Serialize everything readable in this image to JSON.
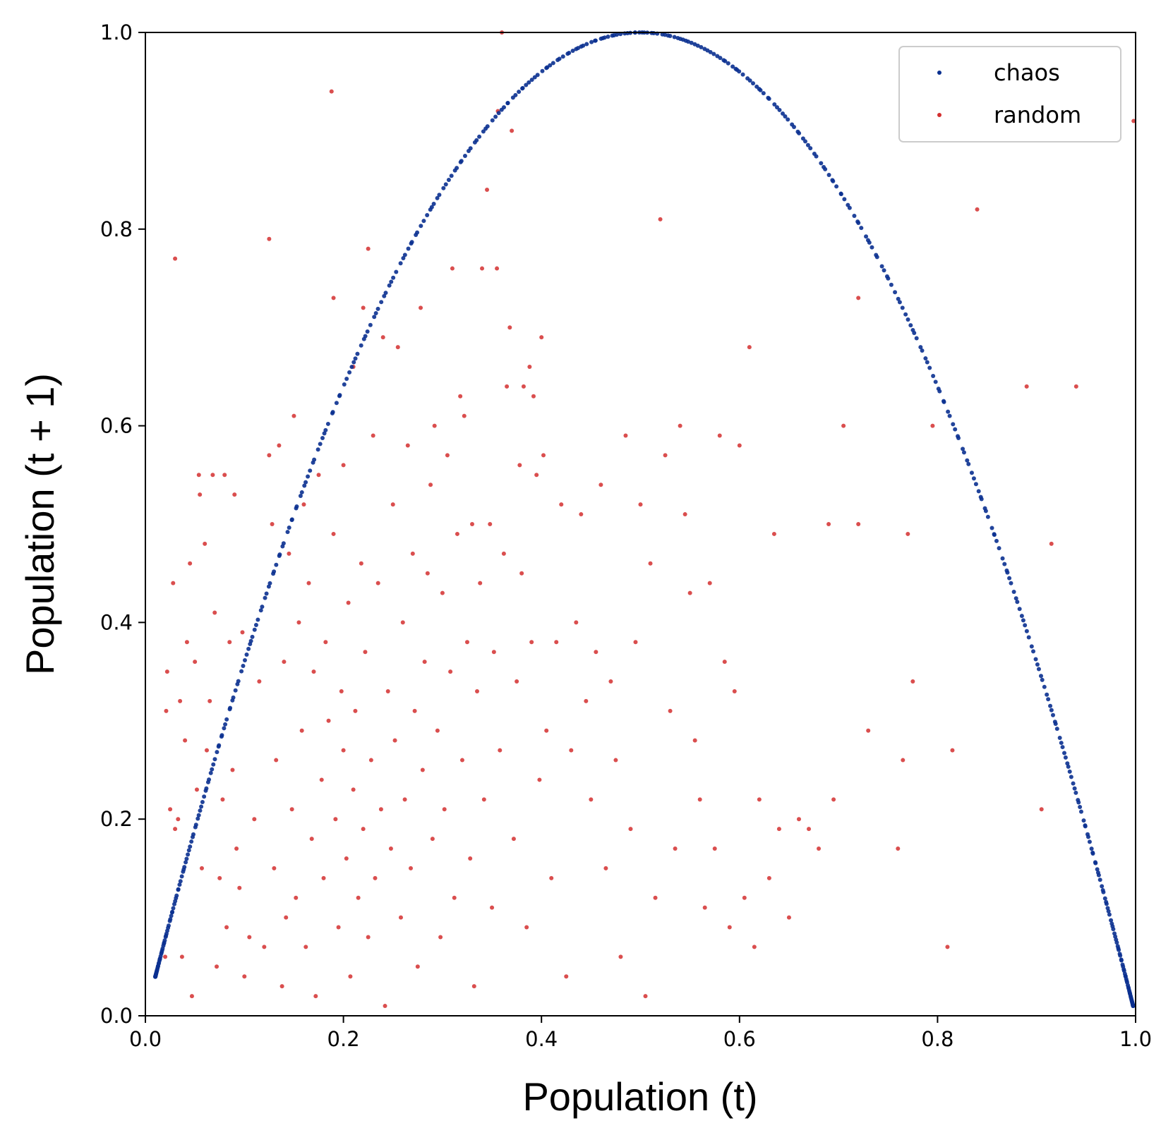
{
  "chart_data": {
    "type": "scatter",
    "xlabel": "Population (t)",
    "ylabel": "Population (t + 1)",
    "xlim": [
      0,
      1
    ],
    "ylim": [
      0,
      1
    ],
    "xticks": [
      "0.0",
      "0.2",
      "0.4",
      "0.6",
      "0.8",
      "1.0"
    ],
    "yticks": [
      "0.0",
      "0.2",
      "0.4",
      "0.6",
      "0.8",
      "1.0"
    ],
    "legend_position": "top-right",
    "series": [
      {
        "name": "chaos",
        "color": "#0a3090",
        "relation": "y = 4x(1 - x)",
        "x_range": [
          0.01,
          0.9975
        ],
        "point_count": 500
      },
      {
        "name": "random",
        "color": "#d32f2f",
        "points": [
          [
            0.02,
            0.06
          ],
          [
            0.021,
            0.31
          ],
          [
            0.022,
            0.35
          ],
          [
            0.025,
            0.21
          ],
          [
            0.028,
            0.44
          ],
          [
            0.03,
            0.77
          ],
          [
            0.03,
            0.19
          ],
          [
            0.033,
            0.2
          ],
          [
            0.035,
            0.32
          ],
          [
            0.037,
            0.06
          ],
          [
            0.04,
            0.28
          ],
          [
            0.042,
            0.38
          ],
          [
            0.045,
            0.46
          ],
          [
            0.047,
            0.02
          ],
          [
            0.05,
            0.36
          ],
          [
            0.052,
            0.23
          ],
          [
            0.054,
            0.55
          ],
          [
            0.055,
            0.53
          ],
          [
            0.057,
            0.15
          ],
          [
            0.06,
            0.48
          ],
          [
            0.062,
            0.27
          ],
          [
            0.065,
            0.32
          ],
          [
            0.068,
            0.55
          ],
          [
            0.07,
            0.41
          ],
          [
            0.072,
            0.05
          ],
          [
            0.075,
            0.14
          ],
          [
            0.078,
            0.22
          ],
          [
            0.08,
            0.55
          ],
          [
            0.082,
            0.09
          ],
          [
            0.085,
            0.38
          ],
          [
            0.088,
            0.25
          ],
          [
            0.09,
            0.53
          ],
          [
            0.092,
            0.17
          ],
          [
            0.095,
            0.13
          ],
          [
            0.098,
            0.39
          ],
          [
            0.1,
            0.04
          ],
          [
            0.105,
            0.08
          ],
          [
            0.11,
            0.2
          ],
          [
            0.115,
            0.34
          ],
          [
            0.12,
            0.07
          ],
          [
            0.125,
            0.79
          ],
          [
            0.125,
            0.57
          ],
          [
            0.128,
            0.5
          ],
          [
            0.13,
            0.15
          ],
          [
            0.132,
            0.26
          ],
          [
            0.135,
            0.58
          ],
          [
            0.138,
            0.03
          ],
          [
            0.14,
            0.36
          ],
          [
            0.142,
            0.1
          ],
          [
            0.145,
            0.47
          ],
          [
            0.148,
            0.21
          ],
          [
            0.15,
            0.61
          ],
          [
            0.152,
            0.12
          ],
          [
            0.155,
            0.4
          ],
          [
            0.158,
            0.29
          ],
          [
            0.16,
            0.52
          ],
          [
            0.162,
            0.07
          ],
          [
            0.165,
            0.44
          ],
          [
            0.168,
            0.18
          ],
          [
            0.17,
            0.35
          ],
          [
            0.172,
            0.02
          ],
          [
            0.175,
            0.55
          ],
          [
            0.178,
            0.24
          ],
          [
            0.18,
            0.14
          ],
          [
            0.182,
            0.38
          ],
          [
            0.185,
            0.3
          ],
          [
            0.188,
            0.94
          ],
          [
            0.19,
            0.49
          ],
          [
            0.19,
            0.73
          ],
          [
            0.192,
            0.2
          ],
          [
            0.195,
            0.09
          ],
          [
            0.198,
            0.33
          ],
          [
            0.2,
            0.56
          ],
          [
            0.2,
            0.27
          ],
          [
            0.203,
            0.16
          ],
          [
            0.205,
            0.42
          ],
          [
            0.207,
            0.04
          ],
          [
            0.21,
            0.66
          ],
          [
            0.21,
            0.23
          ],
          [
            0.212,
            0.31
          ],
          [
            0.215,
            0.12
          ],
          [
            0.218,
            0.46
          ],
          [
            0.22,
            0.72
          ],
          [
            0.22,
            0.19
          ],
          [
            0.222,
            0.37
          ],
          [
            0.225,
            0.78
          ],
          [
            0.225,
            0.08
          ],
          [
            0.228,
            0.26
          ],
          [
            0.23,
            0.59
          ],
          [
            0.232,
            0.14
          ],
          [
            0.235,
            0.44
          ],
          [
            0.238,
            0.21
          ],
          [
            0.24,
            0.69
          ],
          [
            0.242,
            0.01
          ],
          [
            0.245,
            0.33
          ],
          [
            0.248,
            0.17
          ],
          [
            0.25,
            0.52
          ],
          [
            0.252,
            0.28
          ],
          [
            0.255,
            0.68
          ],
          [
            0.258,
            0.1
          ],
          [
            0.26,
            0.4
          ],
          [
            0.262,
            0.22
          ],
          [
            0.265,
            0.58
          ],
          [
            0.268,
            0.15
          ],
          [
            0.27,
            0.47
          ],
          [
            0.272,
            0.31
          ],
          [
            0.275,
            0.05
          ],
          [
            0.278,
            0.72
          ],
          [
            0.28,
            0.25
          ],
          [
            0.282,
            0.36
          ],
          [
            0.285,
            0.45
          ],
          [
            0.288,
            0.54
          ],
          [
            0.29,
            0.18
          ],
          [
            0.292,
            0.6
          ],
          [
            0.295,
            0.29
          ],
          [
            0.298,
            0.08
          ],
          [
            0.3,
            0.43
          ],
          [
            0.302,
            0.21
          ],
          [
            0.305,
            0.57
          ],
          [
            0.308,
            0.35
          ],
          [
            0.31,
            0.76
          ],
          [
            0.312,
            0.12
          ],
          [
            0.315,
            0.49
          ],
          [
            0.318,
            0.63
          ],
          [
            0.32,
            0.26
          ],
          [
            0.322,
            0.61
          ],
          [
            0.325,
            0.38
          ],
          [
            0.328,
            0.16
          ],
          [
            0.33,
            0.5
          ],
          [
            0.332,
            0.03
          ],
          [
            0.335,
            0.33
          ],
          [
            0.338,
            0.44
          ],
          [
            0.34,
            0.76
          ],
          [
            0.342,
            0.22
          ],
          [
            0.345,
            0.84
          ],
          [
            0.348,
            0.5
          ],
          [
            0.35,
            0.11
          ],
          [
            0.352,
            0.37
          ],
          [
            0.355,
            0.76
          ],
          [
            0.356,
            0.92
          ],
          [
            0.358,
            0.27
          ],
          [
            0.36,
            1.0
          ],
          [
            0.362,
            0.47
          ],
          [
            0.365,
            0.64
          ],
          [
            0.368,
            0.7
          ],
          [
            0.37,
            0.9
          ],
          [
            0.372,
            0.18
          ],
          [
            0.375,
            0.34
          ],
          [
            0.378,
            0.56
          ],
          [
            0.38,
            0.45
          ],
          [
            0.382,
            0.64
          ],
          [
            0.385,
            0.09
          ],
          [
            0.388,
            0.66
          ],
          [
            0.39,
            0.38
          ],
          [
            0.392,
            0.63
          ],
          [
            0.395,
            0.55
          ],
          [
            0.398,
            0.24
          ],
          [
            0.4,
            0.69
          ],
          [
            0.402,
            0.57
          ],
          [
            0.405,
            0.29
          ],
          [
            0.41,
            0.14
          ],
          [
            0.415,
            0.38
          ],
          [
            0.42,
            0.52
          ],
          [
            0.425,
            0.04
          ],
          [
            0.43,
            0.27
          ],
          [
            0.435,
            0.4
          ],
          [
            0.44,
            0.51
          ],
          [
            0.445,
            0.32
          ],
          [
            0.45,
            0.22
          ],
          [
            0.455,
            0.37
          ],
          [
            0.46,
            0.54
          ],
          [
            0.465,
            0.15
          ],
          [
            0.47,
            0.34
          ],
          [
            0.475,
            0.26
          ],
          [
            0.48,
            0.06
          ],
          [
            0.485,
            0.59
          ],
          [
            0.49,
            0.19
          ],
          [
            0.495,
            0.38
          ],
          [
            0.5,
            0.52
          ],
          [
            0.505,
            0.02
          ],
          [
            0.51,
            0.46
          ],
          [
            0.515,
            0.12
          ],
          [
            0.52,
            0.81
          ],
          [
            0.525,
            0.57
          ],
          [
            0.53,
            0.31
          ],
          [
            0.535,
            0.17
          ],
          [
            0.54,
            0.6
          ],
          [
            0.545,
            0.51
          ],
          [
            0.55,
            0.43
          ],
          [
            0.555,
            0.28
          ],
          [
            0.56,
            0.22
          ],
          [
            0.565,
            0.11
          ],
          [
            0.57,
            0.44
          ],
          [
            0.575,
            0.17
          ],
          [
            0.58,
            0.59
          ],
          [
            0.585,
            0.36
          ],
          [
            0.59,
            0.09
          ],
          [
            0.595,
            0.33
          ],
          [
            0.6,
            0.58
          ],
          [
            0.605,
            0.12
          ],
          [
            0.61,
            0.68
          ],
          [
            0.615,
            0.07
          ],
          [
            0.62,
            0.22
          ],
          [
            0.63,
            0.14
          ],
          [
            0.635,
            0.49
          ],
          [
            0.64,
            0.19
          ],
          [
            0.65,
            0.1
          ],
          [
            0.66,
            0.2
          ],
          [
            0.67,
            0.19
          ],
          [
            0.68,
            0.17
          ],
          [
            0.69,
            0.5
          ],
          [
            0.695,
            0.22
          ],
          [
            0.705,
            0.6
          ],
          [
            0.72,
            0.5
          ],
          [
            0.72,
            0.73
          ],
          [
            0.73,
            0.29
          ],
          [
            0.76,
            0.17
          ],
          [
            0.765,
            0.26
          ],
          [
            0.77,
            0.49
          ],
          [
            0.775,
            0.34
          ],
          [
            0.795,
            0.6
          ],
          [
            0.81,
            0.07
          ],
          [
            0.815,
            0.27
          ],
          [
            0.84,
            0.82
          ],
          [
            0.89,
            0.64
          ],
          [
            0.905,
            0.21
          ],
          [
            0.915,
            0.48
          ],
          [
            0.94,
            0.64
          ],
          [
            0.998,
            0.91
          ]
        ]
      }
    ]
  }
}
